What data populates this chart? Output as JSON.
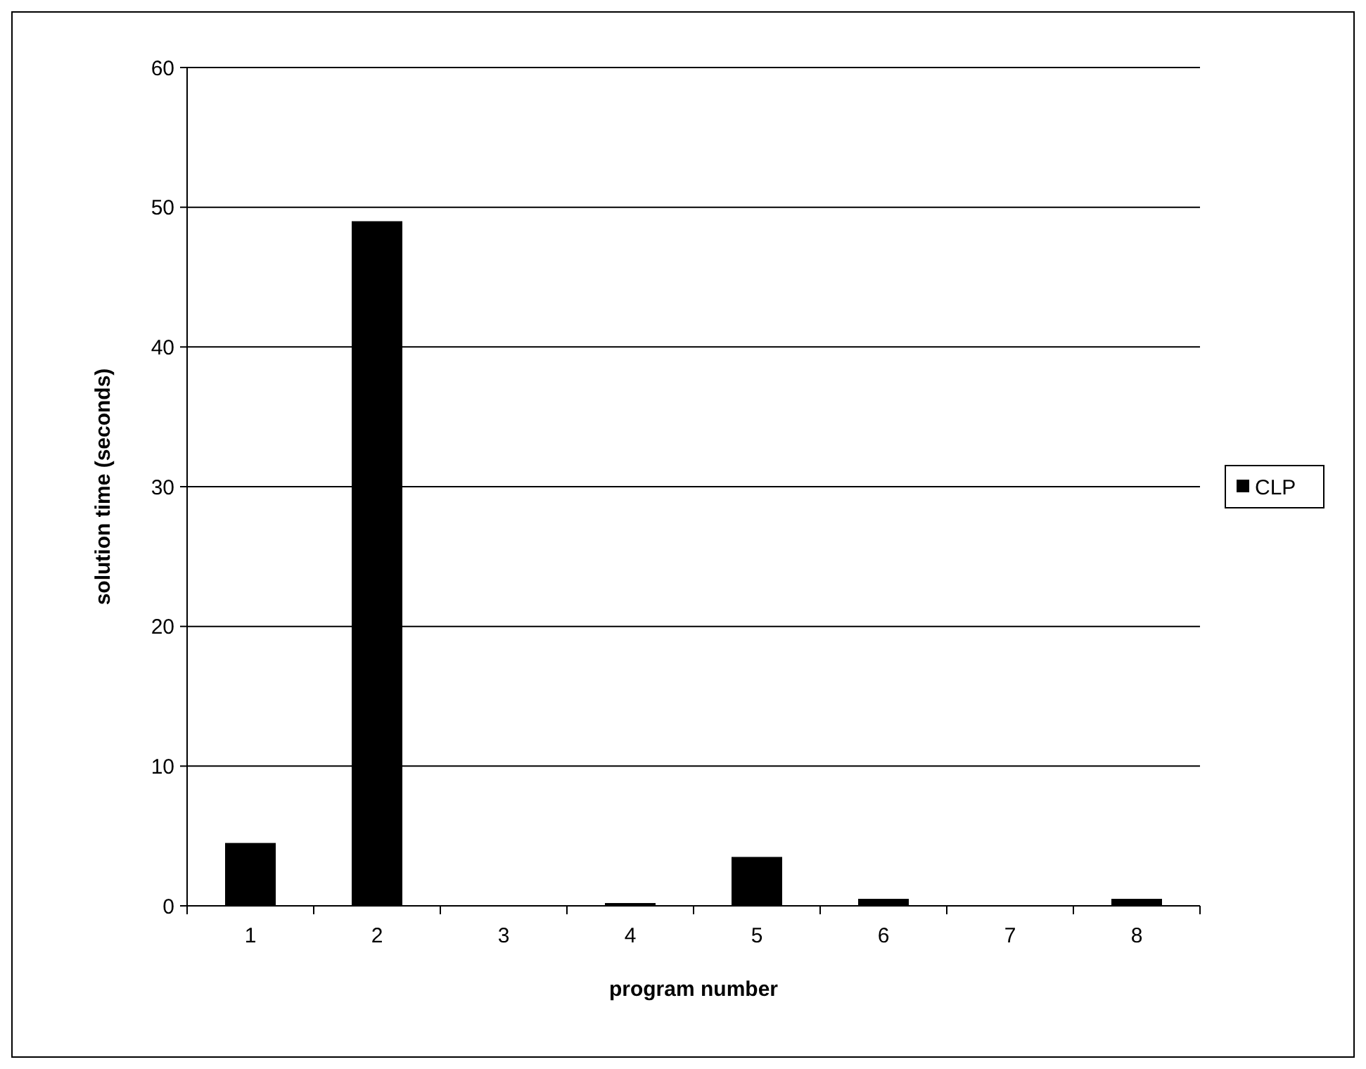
{
  "chart_data": {
    "type": "bar",
    "xlabel": "program number",
    "ylabel": "solution time (seconds)",
    "categories": [
      "1",
      "2",
      "3",
      "4",
      "5",
      "6",
      "7",
      "8"
    ],
    "series": [
      {
        "name": "CLP",
        "color": "#000000",
        "values": [
          4.5,
          49,
          0,
          0.2,
          3.5,
          0.5,
          0,
          0.5
        ]
      }
    ],
    "ylim": [
      0,
      60
    ],
    "yticks": [
      0,
      10,
      20,
      30,
      40,
      50,
      60
    ],
    "grid": "y",
    "legend": "right"
  }
}
